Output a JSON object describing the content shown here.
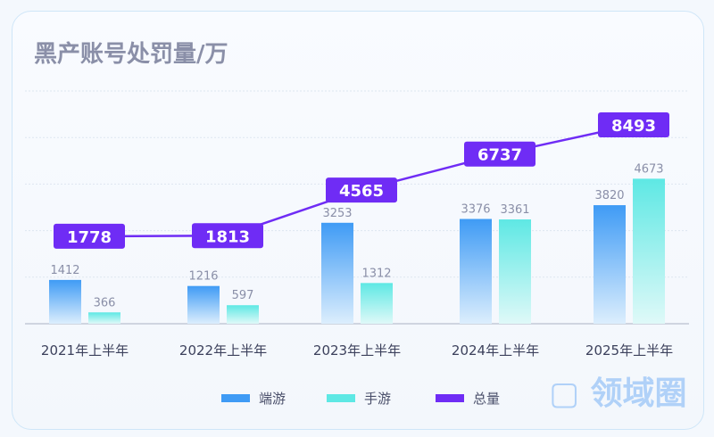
{
  "chart_data": {
    "type": "bar",
    "title": "黑产账号处罚量/万",
    "categories": [
      "2021年上半年",
      "2022年上半年",
      "2023年上半年",
      "2024年上半年",
      "2025年上半年"
    ],
    "series": [
      {
        "name": "端游",
        "type": "bar",
        "values": [
          1412,
          1216,
          3253,
          3376,
          3820
        ],
        "color": "#3f9bf5"
      },
      {
        "name": "手游",
        "type": "bar",
        "values": [
          366,
          597,
          1312,
          3361,
          4673
        ],
        "color": "#5ee8e4"
      },
      {
        "name": "总量",
        "type": "line",
        "values": [
          1778,
          1813,
          4565,
          6737,
          8493
        ],
        "color": "#6f2cf5"
      }
    ],
    "ylim": [
      0,
      7500
    ],
    "grid": true,
    "legend": "bottom"
  },
  "watermark": "领域圈"
}
